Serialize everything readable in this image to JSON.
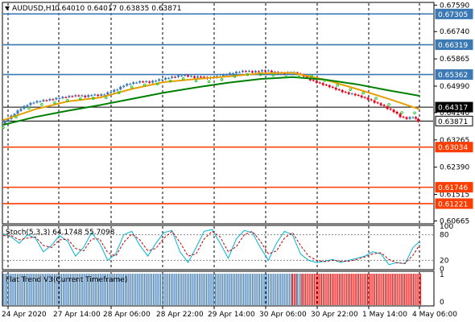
{
  "header": {
    "triangle_icon": "triangle-down-icon",
    "symbol_timeframe": "AUDUSD,H1",
    "ohlc": "0.64010 0.64017 0.63835 0.63871"
  },
  "colors": {
    "blue_level": "#3c78b4",
    "red_level": "#ff3c00",
    "black_level": "#000000",
    "grid": "#000000",
    "bull_candle": "#3c78b4",
    "bear_candle": "#e0001a",
    "ma_fast": "#e8a000",
    "ma_slow": "#008000",
    "psar": "#00c000",
    "stoch_main": "#00b4d8",
    "stoch_signal": "#c00000",
    "trend_blue": "#3c78b4",
    "trend_red": "#ff0000"
  },
  "chart_data": [
    {
      "type": "candlestick",
      "name": "price",
      "title": "AUDUSD,H1",
      "ylim": [
        0.6588,
        0.6762
      ],
      "y_ticks": [
        "0.67590",
        "0.66740",
        "0.65865",
        "0.64990",
        "0.64140",
        "0.63265",
        "0.62390",
        "0.61515",
        "0.60665"
      ],
      "level_lines": [
        {
          "value": 0.67305,
          "label": "0.67305",
          "color": "blue"
        },
        {
          "value": 0.66319,
          "label": "0.66319",
          "color": "blue"
        },
        {
          "value": 0.65362,
          "label": "0.65362",
          "color": "blue"
        },
        {
          "value": 0.64317,
          "label": "0.64317",
          "color": "black"
        },
        {
          "value": 0.63871,
          "label": "0.63871",
          "color": "black"
        },
        {
          "value": 0.63034,
          "label": "0.63034",
          "color": "red"
        },
        {
          "value": 0.61746,
          "label": "0.61746",
          "color": "red"
        },
        {
          "value": 0.61221,
          "label": "0.61221",
          "color": "red"
        }
      ],
      "close_path": [
        [
          0,
          0.6378
        ],
        [
          8,
          0.6395
        ],
        [
          16,
          0.6412
        ],
        [
          24,
          0.6428
        ],
        [
          32,
          0.644
        ],
        [
          40,
          0.6448
        ],
        [
          48,
          0.6452
        ],
        [
          56,
          0.6455
        ],
        [
          64,
          0.6458
        ],
        [
          72,
          0.6462
        ],
        [
          80,
          0.6465
        ],
        [
          88,
          0.6468
        ],
        [
          96,
          0.647
        ],
        [
          104,
          0.6466
        ],
        [
          112,
          0.6472
        ],
        [
          120,
          0.647
        ],
        [
          128,
          0.6474
        ],
        [
          136,
          0.6482
        ],
        [
          144,
          0.649
        ],
        [
          152,
          0.6502
        ],
        [
          160,
          0.6508
        ],
        [
          168,
          0.6512
        ],
        [
          176,
          0.6515
        ],
        [
          184,
          0.6512
        ],
        [
          192,
          0.6518
        ],
        [
          200,
          0.6522
        ],
        [
          208,
          0.6527
        ],
        [
          216,
          0.653
        ],
        [
          224,
          0.6535
        ],
        [
          232,
          0.6532
        ],
        [
          240,
          0.6528
        ],
        [
          248,
          0.653
        ],
        [
          256,
          0.6525
        ],
        [
          264,
          0.6528
        ],
        [
          272,
          0.6532
        ],
        [
          280,
          0.6538
        ],
        [
          288,
          0.6542
        ],
        [
          296,
          0.6546
        ],
        [
          304,
          0.6548
        ],
        [
          312,
          0.6545
        ],
        [
          320,
          0.6548
        ],
        [
          328,
          0.655
        ],
        [
          336,
          0.6546
        ],
        [
          344,
          0.6542
        ],
        [
          352,
          0.654
        ],
        [
          360,
          0.6545
        ],
        [
          368,
          0.654
        ],
        [
          376,
          0.6532
        ],
        [
          384,
          0.652
        ],
        [
          392,
          0.6512
        ],
        [
          400,
          0.6505
        ],
        [
          408,
          0.6498
        ],
        [
          416,
          0.649
        ],
        [
          424,
          0.6482
        ],
        [
          432,
          0.6476
        ],
        [
          440,
          0.6472
        ],
        [
          448,
          0.6465
        ],
        [
          456,
          0.6458
        ],
        [
          464,
          0.6448
        ],
        [
          472,
          0.644
        ],
        [
          480,
          0.6428
        ],
        [
          488,
          0.6418
        ],
        [
          496,
          0.6402
        ],
        [
          504,
          0.6396
        ],
        [
          512,
          0.6401
        ],
        [
          518,
          0.6387
        ]
      ],
      "ma_fast_path": [
        [
          0,
          0.639
        ],
        [
          40,
          0.6425
        ],
        [
          80,
          0.645
        ],
        [
          120,
          0.6462
        ],
        [
          160,
          0.649
        ],
        [
          200,
          0.6512
        ],
        [
          240,
          0.6522
        ],
        [
          280,
          0.653
        ],
        [
          320,
          0.654
        ],
        [
          360,
          0.6542
        ],
        [
          400,
          0.652
        ],
        [
          440,
          0.649
        ],
        [
          480,
          0.6458
        ],
        [
          518,
          0.6425
        ]
      ],
      "ma_slow_path": [
        [
          0,
          0.6375
        ],
        [
          40,
          0.64
        ],
        [
          80,
          0.642
        ],
        [
          120,
          0.6438
        ],
        [
          160,
          0.6458
        ],
        [
          200,
          0.6478
        ],
        [
          240,
          0.6495
        ],
        [
          280,
          0.651
        ],
        [
          320,
          0.6522
        ],
        [
          360,
          0.6528
        ],
        [
          400,
          0.652
        ],
        [
          440,
          0.6505
        ],
        [
          480,
          0.6485
        ],
        [
          518,
          0.6468
        ]
      ]
    },
    {
      "type": "line",
      "name": "stochastic",
      "title": "Stoch(5,3,3) 64.1748 55.7098",
      "ylim": [
        0,
        100
      ],
      "y_ticks": [
        "100",
        "80",
        "20",
        "0"
      ],
      "levels": [
        80,
        20
      ],
      "x": [
        0,
        10,
        20,
        30,
        40,
        50,
        60,
        70,
        80,
        90,
        100,
        110,
        120,
        130,
        140,
        150,
        160,
        170,
        180,
        190,
        200,
        210,
        220,
        230,
        240,
        250,
        260,
        270,
        280,
        290,
        300,
        310,
        320,
        330,
        340,
        350,
        360,
        370,
        380,
        390,
        400,
        410,
        420,
        430,
        440,
        450,
        460,
        470,
        480,
        490,
        500,
        510,
        518
      ],
      "series": [
        {
          "name": "",
          "role": "main",
          "values": [
            82,
            75,
            60,
            80,
            72,
            40,
            55,
            78,
            65,
            30,
            50,
            85,
            60,
            20,
            35,
            80,
            88,
            55,
            30,
            60,
            85,
            90,
            40,
            15,
            50,
            88,
            92,
            60,
            25,
            70,
            90,
            85,
            50,
            20,
            60,
            88,
            80,
            35,
            20,
            15,
            18,
            22,
            15,
            20,
            25,
            30,
            40,
            35,
            10,
            15,
            12,
            50,
            64
          ]
        },
        {
          "name": "",
          "role": "signal",
          "values": [
            78,
            78,
            68,
            72,
            75,
            55,
            50,
            68,
            70,
            48,
            42,
            70,
            70,
            38,
            30,
            62,
            82,
            68,
            42,
            48,
            72,
            88,
            62,
            30,
            35,
            70,
            88,
            75,
            40,
            52,
            80,
            88,
            65,
            35,
            42,
            72,
            85,
            55,
            30,
            20,
            17,
            20,
            18,
            18,
            22,
            28,
            35,
            38,
            22,
            14,
            13,
            32,
            56
          ]
        }
      ]
    },
    {
      "type": "bar",
      "name": "flat-trend",
      "title": "Flat Trend V3(Current Timeframe)",
      "ylim": [
        0,
        1
      ],
      "y_ticks": [
        "1",
        "0"
      ],
      "segments": [
        {
          "from": 0,
          "to": 360,
          "color": "blue"
        },
        {
          "from": 360,
          "to": 366,
          "color": "red"
        },
        {
          "from": 366,
          "to": 372,
          "color": "blue"
        },
        {
          "from": 372,
          "to": 520,
          "color": "red"
        }
      ]
    }
  ],
  "x_axis": {
    "labels": [
      "24 Apr 2020",
      "27 Apr 14:00",
      "28 Apr 06:00",
      "28 Apr 22:00",
      "29 Apr 14:00",
      "30 Apr 06:00",
      "30 Apr 22:00",
      "1 May 14:00",
      "4 May 06:00"
    ]
  }
}
